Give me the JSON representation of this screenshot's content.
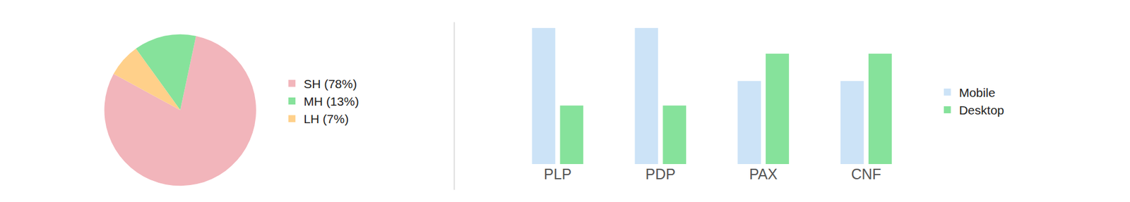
{
  "chart_data": [
    {
      "type": "pie",
      "categories": [
        "SH (78%)",
        "MH (13%)",
        "LH (7%)"
      ],
      "values": [
        78,
        13,
        7
      ],
      "colors": [
        "#f2b5bb",
        "#86e29b",
        "#ffd08a"
      ],
      "legend": "right"
    },
    {
      "type": "bar",
      "categories": [
        "PLP",
        "PDP",
        "PAX",
        "CNF"
      ],
      "series": [
        {
          "name": "Mobile",
          "color": "#cce3f7",
          "values": [
            100,
            100,
            61,
            61
          ]
        },
        {
          "name": "Desktop",
          "color": "#86e29b",
          "values": [
            43,
            43,
            81,
            81
          ]
        }
      ],
      "ylim": [
        0,
        100
      ],
      "tick_labels": "x",
      "grid": false,
      "legend": "right"
    }
  ]
}
